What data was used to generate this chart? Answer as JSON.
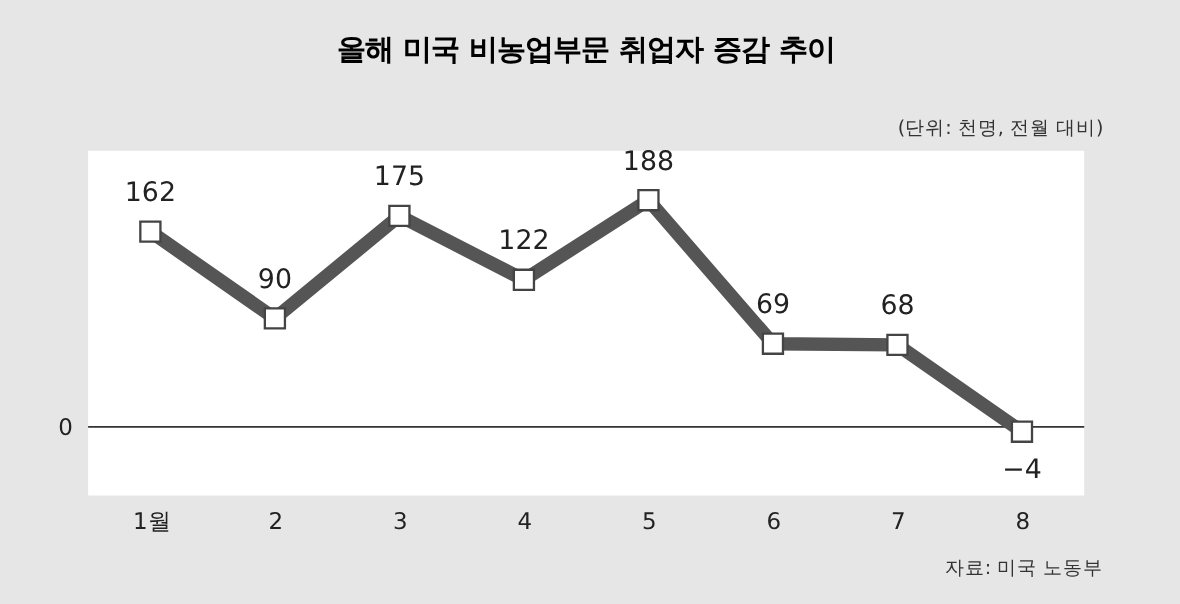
{
  "chart_data": {
    "type": "line",
    "title": "올해 미국 비농업부문 취업자 증감 추이",
    "subtitle": "(단위: 천명, 전월 대비)",
    "categories": [
      "1월",
      "2",
      "3",
      "4",
      "5",
      "6",
      "7",
      "8"
    ],
    "series": [
      {
        "color": "#555555",
        "values": [
          162,
          90,
          175,
          122,
          188,
          69,
          68,
          -4
        ]
      }
    ],
    "ylim": [
      -57,
      229
    ],
    "grid": false,
    "marker": "square",
    "line_style": "solid",
    "data_labels": true,
    "ref_lines": [
      {
        "axis": "y",
        "value": 0,
        "label": "0",
        "color": "#333333"
      }
    ],
    "annotations": [
      "자료: 미국 노동부"
    ]
  }
}
